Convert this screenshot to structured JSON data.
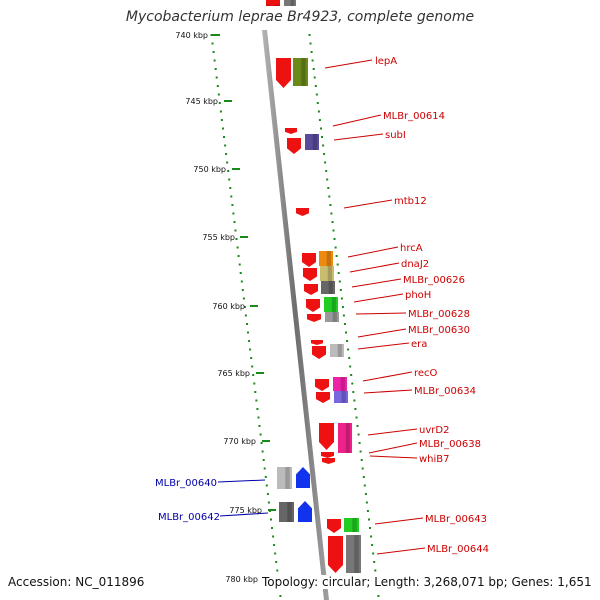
{
  "title": "Mycobacterium leprae Br4923, complete genome",
  "footer": {
    "accession": "Accession: NC_011896",
    "stats": "Topology: circular; Length: 3,268,071 bp; Genes: 1,651"
  },
  "colors": {
    "backbone": "#8c8c8c",
    "ruler": "#1a8a1a",
    "forward_label": "#cc0000",
    "reverse_label": "#0000aa",
    "arrow_red": "#ee1111",
    "arrow_blue": "#1133ee"
  },
  "ruler_labels": [
    "740 kbp",
    "745 kbp",
    "750 kbp",
    "755 kbp",
    "760 kbp",
    "765 kbp",
    "770 kbp",
    "775 kbp",
    "780 kbp"
  ],
  "gene_labels": [
    "lepA",
    "MLBr_00614",
    "subI",
    "mtb12",
    "hrcA",
    "dnaJ2",
    "MLBr_00626",
    "phoH",
    "MLBr_00628",
    "MLBr_00630",
    "era",
    "recO",
    "MLBr_00634",
    "uvrD2",
    "MLBr_00638",
    "whiB7",
    "MLBr_00640",
    "MLBr_00642",
    "MLBr_00643",
    "MLBr_00644"
  ]
}
